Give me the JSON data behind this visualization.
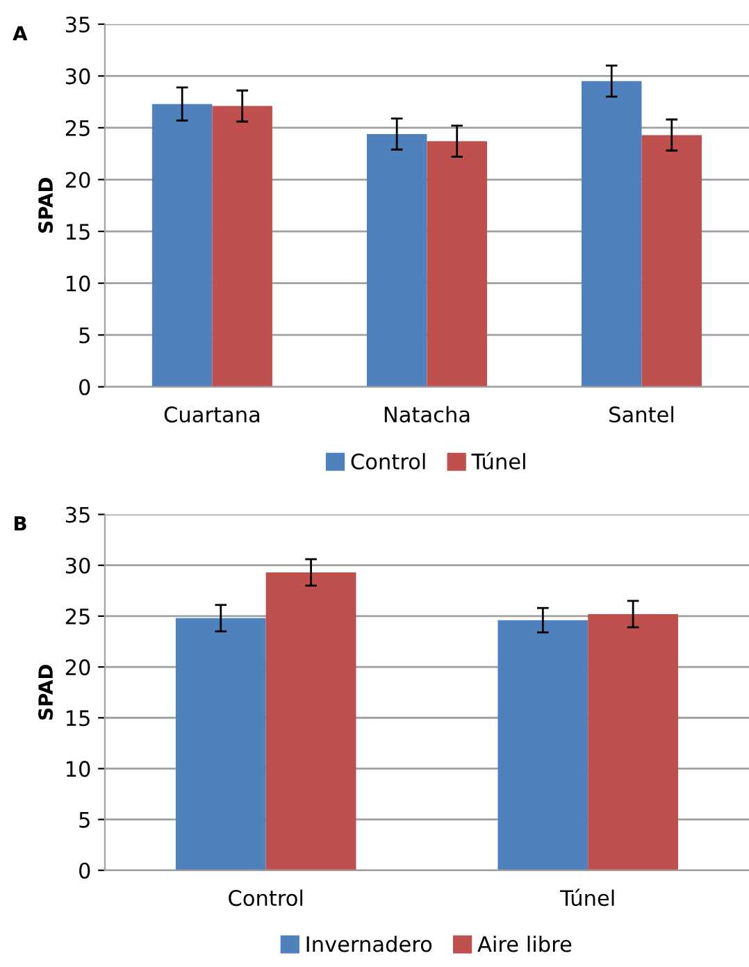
{
  "chart_data": [
    {
      "type": "bar",
      "title": "A",
      "ylabel": "SPAD",
      "categories": [
        "Cuartana",
        "Natacha",
        "Santel"
      ],
      "series": [
        {
          "name": "Control",
          "color": "#4f81bd",
          "values": [
            27.3,
            24.4,
            29.5
          ],
          "errors": [
            1.6,
            1.5,
            1.5
          ]
        },
        {
          "name": "Túnel",
          "color": "#c0504d",
          "values": [
            27.1,
            23.7,
            24.3
          ],
          "errors": [
            1.5,
            1.5,
            1.5
          ]
        }
      ],
      "ylim": [
        0,
        35
      ],
      "yticks": [
        0,
        5,
        10,
        15,
        20,
        25,
        30,
        35
      ],
      "grid": "y",
      "legend": "bottom"
    },
    {
      "type": "bar",
      "title": "B",
      "ylabel": "SPAD",
      "categories": [
        "Control",
        "Túnel"
      ],
      "series": [
        {
          "name": "Invernadero",
          "color": "#4f81bd",
          "values": [
            24.8,
            24.6
          ],
          "errors": [
            1.3,
            1.2
          ]
        },
        {
          "name": "Aire libre",
          "color": "#c0504d",
          "values": [
            29.3,
            25.2
          ],
          "errors": [
            1.3,
            1.3
          ]
        }
      ],
      "ylim": [
        0,
        35
      ],
      "yticks": [
        0,
        5,
        10,
        15,
        20,
        25,
        30,
        35
      ],
      "grid": "y",
      "legend": "bottom"
    }
  ]
}
